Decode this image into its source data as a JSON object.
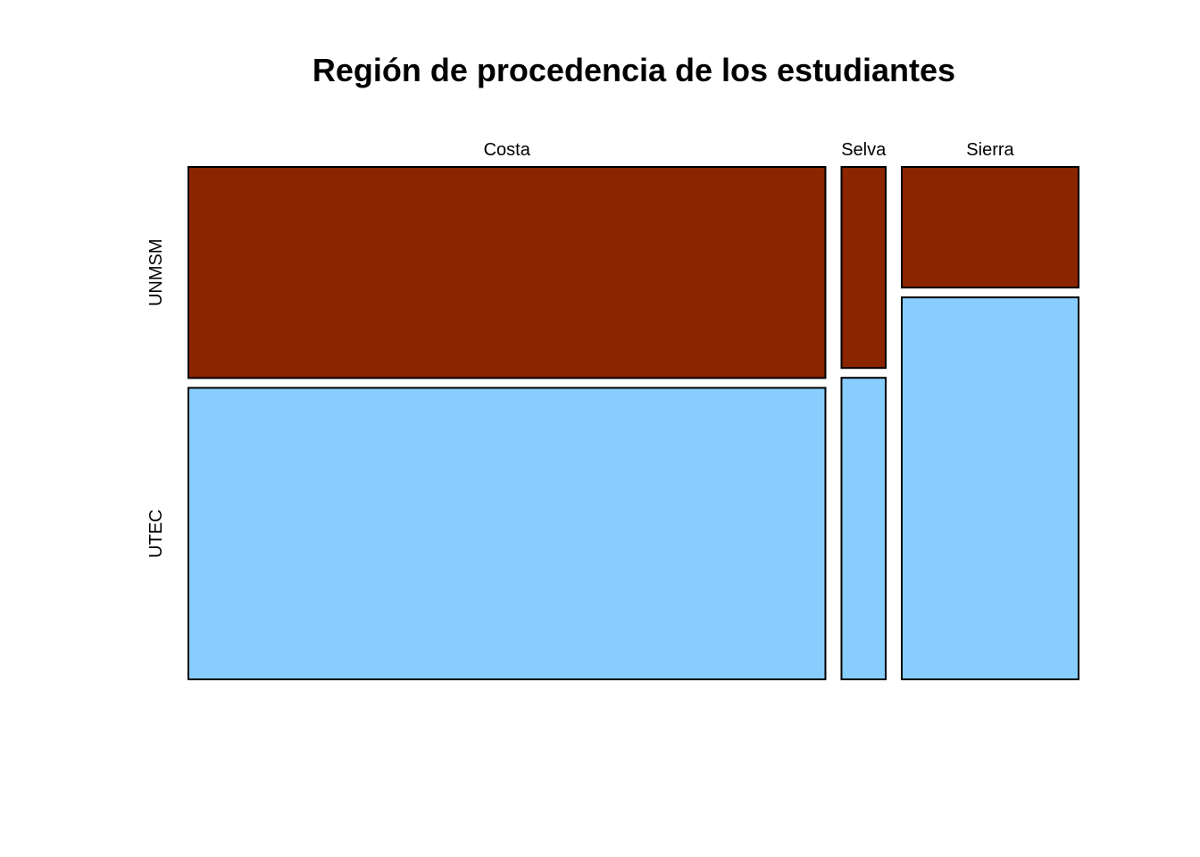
{
  "chart_data": {
    "type": "mosaic",
    "title": "Región de procedencia de los estudiantes",
    "categories": [
      "Costa",
      "Selva",
      "Sierra"
    ],
    "groups": [
      "UNMSM",
      "UTEC"
    ],
    "column_shares": [
      0.735,
      0.051,
      0.204
    ],
    "conditional_shares": {
      "Costa": {
        "UNMSM": 0.42,
        "UTEC": 0.58
      },
      "Selva": {
        "UNMSM": 0.4,
        "UTEC": 0.6
      },
      "Sierra": {
        "UNMSM": 0.24,
        "UTEC": 0.76
      }
    },
    "colors": {
      "UNMSM": "#8B2500",
      "UTEC": "#87CEFF"
    }
  }
}
